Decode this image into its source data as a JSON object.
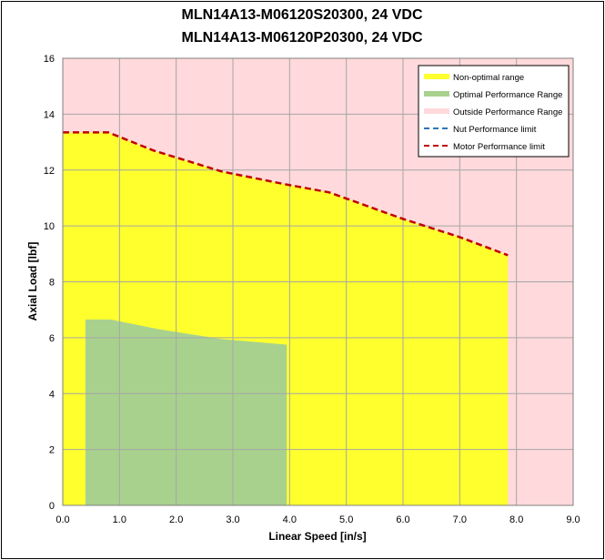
{
  "chart_data": {
    "type": "area",
    "title_lines": [
      "MLN14A13-M06120S20300, 24 VDC",
      "MLN14A13-M06120P20300, 24 VDC"
    ],
    "xlabel": "Linear Speed [in/s]",
    "ylabel": "Axial Load [lbf]",
    "xlim": [
      0,
      9
    ],
    "ylim": [
      0,
      16
    ],
    "x_ticks": [
      "0.0",
      "1.0",
      "2.0",
      "3.0",
      "4.0",
      "5.0",
      "6.0",
      "7.0",
      "8.0",
      "9.0"
    ],
    "y_ticks": [
      "0",
      "2",
      "4",
      "6",
      "8",
      "10",
      "12",
      "14",
      "16"
    ],
    "grid": true,
    "legend_position": "top-right",
    "colors": {
      "outside": "#FFD9DC",
      "non_optimal": "#FFFF2E",
      "optimal": "#A9D18E",
      "nut_limit": "#2E75B6",
      "motor_limit": "#C00000",
      "grid": "#A6A6A6"
    },
    "series": [
      {
        "name": "Non-optimal range",
        "kind": "area",
        "points": [
          [
            0,
            13.35
          ],
          [
            0.8,
            13.35
          ],
          [
            1.6,
            12.7
          ],
          [
            2.8,
            11.95
          ],
          [
            3.9,
            11.5
          ],
          [
            4.7,
            11.2
          ],
          [
            6.0,
            10.25
          ],
          [
            7.0,
            9.6
          ],
          [
            7.85,
            8.95
          ],
          [
            7.85,
            0
          ]
        ]
      },
      {
        "name": "Optimal Performance Range",
        "kind": "area",
        "points": [
          [
            0.4,
            6.65
          ],
          [
            0.85,
            6.65
          ],
          [
            1.7,
            6.3
          ],
          [
            2.8,
            5.95
          ],
          [
            3.95,
            5.75
          ],
          [
            3.95,
            0
          ]
        ]
      },
      {
        "name": "Outside Performance Range",
        "kind": "background"
      },
      {
        "name": "Nut Performance limit",
        "kind": "dashed-line",
        "points": []
      },
      {
        "name": "Motor Performance limit",
        "kind": "dashed-line",
        "points": [
          [
            0,
            13.35
          ],
          [
            0.8,
            13.35
          ],
          [
            1.6,
            12.7
          ],
          [
            2.8,
            11.95
          ],
          [
            3.9,
            11.5
          ],
          [
            4.7,
            11.2
          ],
          [
            6.0,
            10.25
          ],
          [
            7.0,
            9.6
          ],
          [
            7.85,
            8.95
          ]
        ]
      }
    ]
  }
}
